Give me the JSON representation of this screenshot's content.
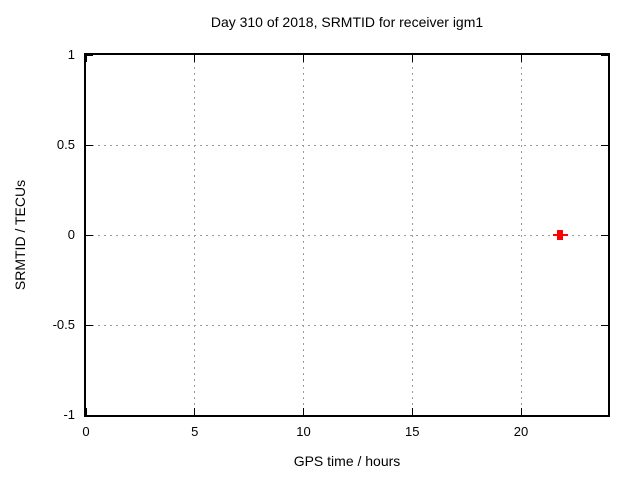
{
  "chart_data": {
    "type": "scatter",
    "title": "Day 310 of 2018, SRMTID for receiver igm1",
    "xlabel": "GPS time / hours",
    "ylabel": "SRMTID / TECUs",
    "xlim": [
      0,
      24
    ],
    "ylim": [
      -1,
      1
    ],
    "xticks": [
      0,
      5,
      10,
      15,
      20
    ],
    "yticks": [
      -1,
      -0.5,
      0,
      0.5,
      1
    ],
    "grid": true,
    "grid_style": "dotted",
    "legend": false,
    "series": [
      {
        "name": "SRMTID",
        "marker": "square-with-xerrorbar",
        "color": "#ff0000",
        "points": [
          {
            "x": 21.8,
            "y": 0.0,
            "xerr": 0.35
          }
        ]
      }
    ]
  },
  "colors": {
    "background": "#ffffff",
    "border": "#000000",
    "grid": "#9a9a9a",
    "text": "#000000",
    "point": "#ff0000"
  }
}
